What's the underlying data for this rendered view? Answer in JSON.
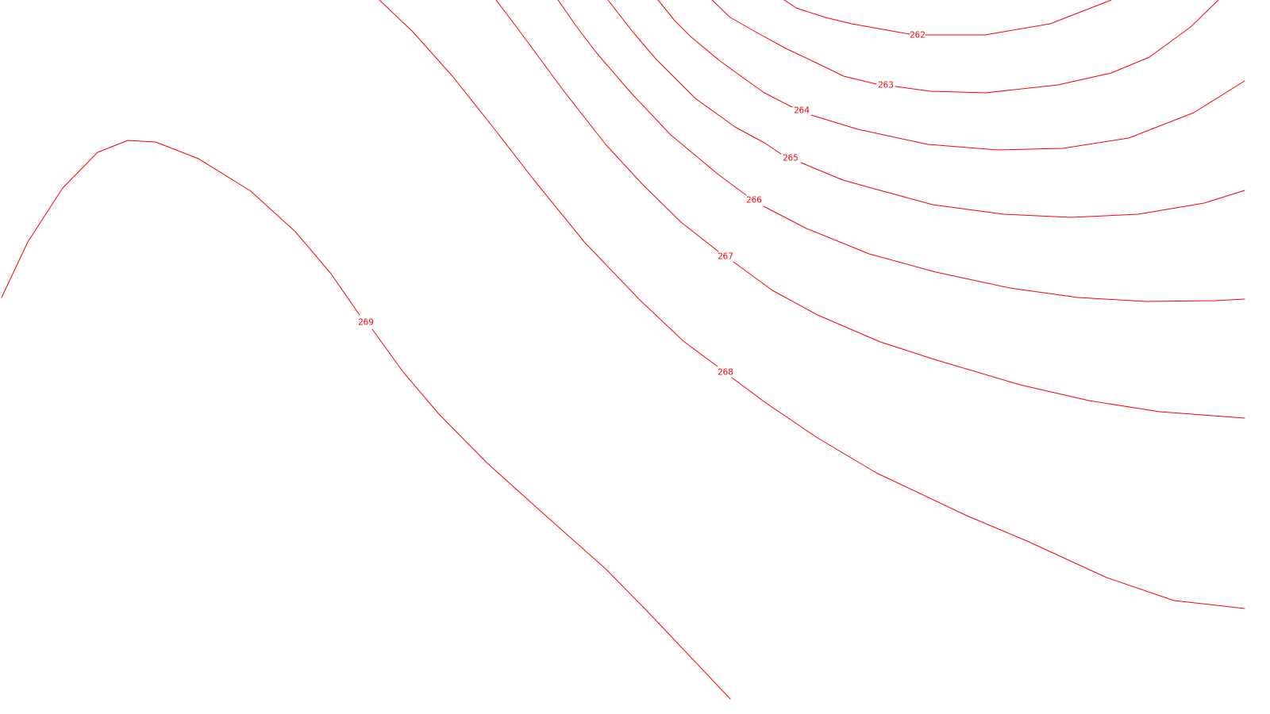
{
  "map": {
    "background_color": "#ffffff",
    "line_color": "#ff0000",
    "contours": [
      {
        "value": "262"
      },
      {
        "value": "263"
      },
      {
        "value": "264"
      },
      {
        "value": "265"
      },
      {
        "value": "266"
      },
      {
        "value": "267"
      },
      {
        "value": "268"
      },
      {
        "value": "269"
      }
    ]
  }
}
